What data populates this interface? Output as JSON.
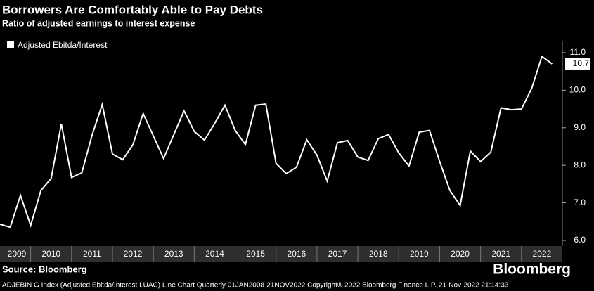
{
  "chart_data": {
    "type": "line",
    "title": "Borrowers Are Comfortably Able to Pay Debts",
    "subtitle": "Ratio of adjusted earnings to interest expense",
    "source": "Source: Bloomberg",
    "brand": "Bloomberg",
    "footnote": "ADJEBIN G Index (Adjusted Ebitda/Interest LUAC) Line Chart  Quarterly 01JAN2008-21NOV2022   Copyright® 2022 Bloomberg Finance L.P.   21-Nov-2022 21:14:33",
    "legend": "top-left",
    "grid": false,
    "x": [
      2009.25,
      2009.5,
      2009.75,
      2010,
      2010.25,
      2010.5,
      2010.75,
      2011,
      2011.25,
      2011.5,
      2011.75,
      2012,
      2012.25,
      2012.5,
      2012.75,
      2013,
      2013.25,
      2013.5,
      2013.75,
      2014,
      2014.25,
      2014.5,
      2014.75,
      2015,
      2015.25,
      2015.5,
      2015.75,
      2016,
      2016.25,
      2016.5,
      2016.75,
      2017,
      2017.25,
      2017.5,
      2017.75,
      2018,
      2018.25,
      2018.5,
      2018.75,
      2019,
      2019.25,
      2019.5,
      2019.75,
      2020,
      2020.25,
      2020.5,
      2020.75,
      2021,
      2021.25,
      2021.5,
      2021.75,
      2022,
      2022.25,
      2022.5,
      2022.75
    ],
    "series": [
      {
        "name": "Adjusted Ebitda/Interest",
        "color": "#ffffff",
        "values": [
          6.43,
          6.35,
          7.2,
          6.4,
          7.33,
          7.65,
          9.1,
          7.68,
          7.8,
          8.8,
          9.62,
          8.3,
          8.15,
          8.55,
          9.38,
          8.78,
          8.18,
          8.82,
          9.45,
          8.9,
          8.67,
          9.12,
          9.6,
          8.93,
          8.55,
          9.6,
          9.63,
          8.05,
          7.78,
          7.95,
          8.68,
          8.27,
          7.58,
          8.6,
          8.66,
          8.22,
          8.13,
          8.71,
          8.82,
          8.33,
          7.98,
          8.88,
          8.93,
          8.1,
          7.33,
          6.93,
          8.38,
          8.1,
          8.35,
          9.53,
          9.48,
          9.5,
          10.05,
          10.9,
          10.7
        ],
        "value_labels": [
          null,
          null,
          null,
          null,
          null,
          null,
          null,
          null,
          null,
          null,
          null,
          null,
          null,
          null,
          null,
          null,
          null,
          null,
          null,
          null,
          null,
          null,
          null,
          null,
          null,
          null,
          null,
          null,
          null,
          null,
          null,
          null,
          null,
          null,
          null,
          null,
          null,
          null,
          null,
          null,
          null,
          null,
          null,
          null,
          null,
          null,
          null,
          null,
          null,
          null,
          null,
          null,
          null,
          null,
          "10.7"
        ]
      }
    ],
    "xlim": [
      2009.25,
      2023
    ],
    "xticks": [
      2009,
      2010,
      2011,
      2012,
      2013,
      2014,
      2015,
      2016,
      2017,
      2018,
      2019,
      2020,
      2021,
      2022
    ],
    "ylim": [
      5.85,
      11.28
    ],
    "yticks": [
      {
        "value": 6,
        "label": "6.0"
      },
      {
        "value": 7,
        "label": "7.0"
      },
      {
        "value": 8,
        "label": "8.0"
      },
      {
        "value": 9,
        "label": "9.0"
      },
      {
        "value": 10,
        "label": "10.0"
      },
      {
        "value": 11,
        "label": "11.0"
      }
    ]
  }
}
